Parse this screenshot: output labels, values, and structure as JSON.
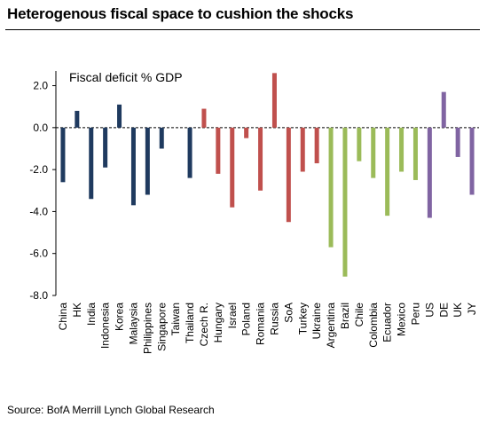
{
  "header": {
    "title": "Heterogenous fiscal space to cushion the shocks"
  },
  "footer": {
    "source": "Source: BofA Merrill Lynch Global Research"
  },
  "chart_data": {
    "type": "bar",
    "title": "Fiscal deficit % GDP",
    "xlabel": "",
    "ylabel": "",
    "ylim": [
      -8,
      2.7
    ],
    "yticks": [
      2.0,
      0.0,
      -2.0,
      -4.0,
      -6.0,
      -8.0
    ],
    "ytick_labels": [
      "2.0",
      "0.0",
      "-2.0",
      "-4.0",
      "-6.0",
      "-8.0"
    ],
    "grid": false,
    "colors": {
      "asia": "#1f3a5f",
      "emea": "#c0504d",
      "latam": "#9bbb59",
      "dm": "#8064a2"
    },
    "categories": [
      "China",
      "HK",
      "India",
      "Indonesia",
      "Korea",
      "Malaysia",
      "Philippines",
      "Singapore",
      "Taiwan",
      "Thailand",
      "Czech R.",
      "Hungary",
      "Israel",
      "Poland",
      "Romania",
      "Russia",
      "SoA",
      "Turkey",
      "Ukraine",
      "Argentina",
      "Brazil",
      "Chile",
      "Colombia",
      "Ecuador",
      "Mexico",
      "Peru",
      "US",
      "DE",
      "UK",
      "JY"
    ],
    "values": [
      -2.6,
      0.8,
      -3.4,
      -1.9,
      1.1,
      -3.7,
      -3.2,
      -1.0,
      0.0,
      -2.4,
      0.9,
      -2.2,
      -3.8,
      -0.5,
      -3.0,
      2.6,
      -4.5,
      -2.1,
      -1.7,
      -5.7,
      -7.1,
      -1.6,
      -2.4,
      -4.2,
      -2.1,
      -2.5,
      -4.3,
      1.7,
      -1.4,
      -3.2
    ],
    "groups": [
      "asia",
      "asia",
      "asia",
      "asia",
      "asia",
      "asia",
      "asia",
      "asia",
      "asia",
      "asia",
      "emea",
      "emea",
      "emea",
      "emea",
      "emea",
      "emea",
      "emea",
      "emea",
      "emea",
      "latam",
      "latam",
      "latam",
      "latam",
      "latam",
      "latam",
      "latam",
      "dm",
      "dm",
      "dm",
      "dm"
    ]
  }
}
